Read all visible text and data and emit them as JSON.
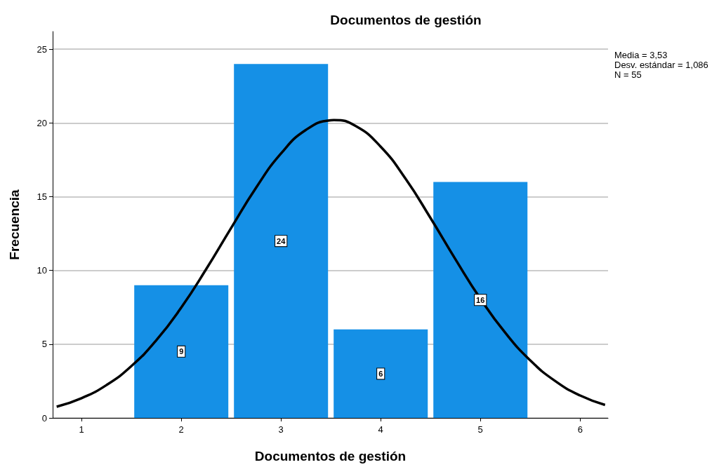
{
  "chart_data": {
    "type": "histogram",
    "title": "Documentos de gestión",
    "xlabel": "Documentos de gestión",
    "ylabel": "Frecuencia",
    "bins": [
      1.5,
      2.5,
      3.5,
      4.5,
      5.5
    ],
    "values": [
      9,
      24,
      6,
      16
    ],
    "color": "#1590e6",
    "value_labels": [
      "9",
      "24",
      "6",
      "16"
    ],
    "series": [
      {
        "type": "line",
        "color": "#000000",
        "x": [
          0.75,
          1.0,
          1.25,
          1.5,
          1.75,
          2.0,
          2.25,
          2.5,
          2.75,
          3.0,
          3.25,
          3.5,
          3.53,
          3.75,
          4.0,
          4.25,
          4.5,
          4.75,
          5.0,
          5.25,
          5.5,
          5.75,
          6.0,
          6.25
        ],
        "values": [
          0.76,
          1.34,
          2.23,
          3.52,
          5.27,
          7.49,
          10.09,
          12.88,
          15.61,
          17.93,
          19.53,
          20.19,
          20.2,
          19.79,
          18.39,
          16.21,
          13.55,
          10.75,
          8.08,
          5.77,
          3.9,
          2.5,
          1.52,
          0.88
        ]
      }
    ],
    "xlim": [
      0.71,
      6.28
    ],
    "xticks": [
      1,
      2,
      3,
      4,
      5,
      6
    ],
    "ylim": [
      0,
      26.2
    ],
    "yticks": [
      0,
      5,
      10,
      15,
      20,
      25
    ],
    "grid": "y",
    "annotations": [
      "Media = 3,53",
      "Desv. estándar = 1,086",
      "N = 55"
    ]
  }
}
